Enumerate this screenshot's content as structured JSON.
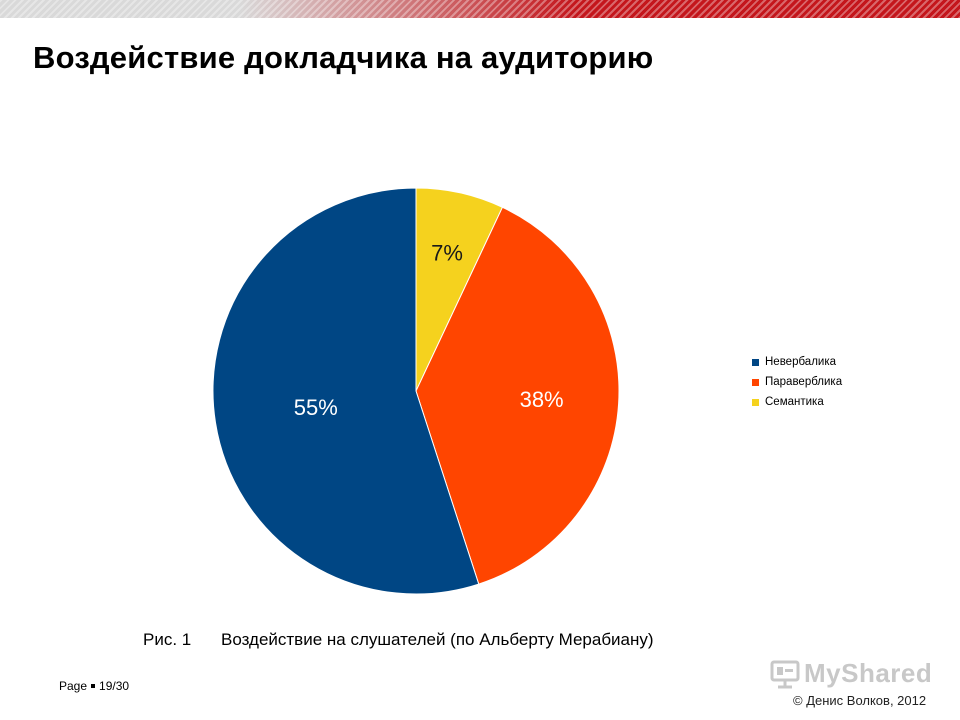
{
  "slide": {
    "title": "Воздействие докладчика на аудиторию",
    "caption_fig": "Рис. 1",
    "caption_text": "Воздействие на слушателей (по Альберту Мерабиану)",
    "page_label": "Page",
    "page_number": "19/30",
    "logo_text": "MyShared",
    "copyright": "© Денис Волков, 2012"
  },
  "colors": {
    "brand_red": "#c4161c",
    "nonverbal": "#004684",
    "paraverbal": "#ff4500",
    "semantic": "#f5d21e"
  },
  "chart_data": {
    "type": "pie",
    "title": "",
    "slices": [
      {
        "name": "Невербалика",
        "value": 55,
        "label": "55%",
        "color": "#004684"
      },
      {
        "name": "Параверблика",
        "value": 38,
        "label": "38%",
        "color": "#ff4500"
      },
      {
        "name": "Семантика",
        "value": 7,
        "label": "7%",
        "color": "#f5d21e"
      }
    ],
    "legend": [
      "Невербалика",
      "Параверблика",
      "Семантика"
    ],
    "legend_position": "right",
    "start_angle": "12 o'clock",
    "direction": "counter-clockwise for first slice"
  }
}
